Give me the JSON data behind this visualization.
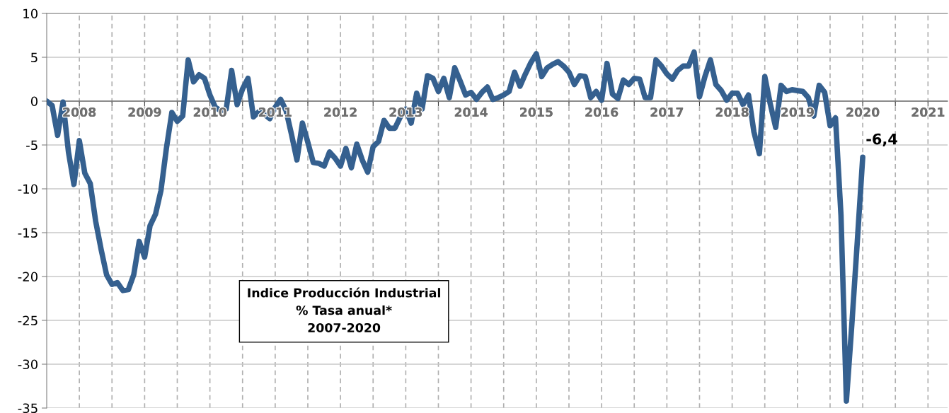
{
  "chart_data": {
    "type": "line",
    "title": "Indice Producción Industrial\n% Tasa anual*\n2007-2020",
    "x": [
      2007.5,
      2007.583,
      2007.667,
      2007.75,
      2007.833,
      2007.917,
      2008,
      2008.083,
      2008.167,
      2008.25,
      2008.333,
      2008.417,
      2008.5,
      2008.583,
      2008.667,
      2008.75,
      2008.833,
      2008.917,
      2009,
      2009.083,
      2009.167,
      2009.25,
      2009.333,
      2009.417,
      2009.5,
      2009.583,
      2009.667,
      2009.75,
      2009.833,
      2009.917,
      2010,
      2010.083,
      2010.167,
      2010.25,
      2010.333,
      2010.417,
      2010.5,
      2010.583,
      2010.667,
      2010.75,
      2010.833,
      2010.917,
      2011,
      2011.083,
      2011.167,
      2011.25,
      2011.333,
      2011.417,
      2011.5,
      2011.583,
      2011.667,
      2011.75,
      2011.833,
      2011.917,
      2012,
      2012.083,
      2012.167,
      2012.25,
      2012.333,
      2012.417,
      2012.5,
      2012.583,
      2012.667,
      2012.75,
      2012.833,
      2012.917,
      2013,
      2013.083,
      2013.167,
      2013.25,
      2013.333,
      2013.417,
      2013.5,
      2013.583,
      2013.667,
      2013.75,
      2013.833,
      2013.917,
      2014,
      2014.083,
      2014.167,
      2014.25,
      2014.333,
      2014.417,
      2014.5,
      2014.583,
      2014.667,
      2014.75,
      2014.833,
      2014.917,
      2015,
      2015.083,
      2015.167,
      2015.25,
      2015.333,
      2015.417,
      2015.5,
      2015.583,
      2015.667,
      2015.75,
      2015.833,
      2015.917,
      2016,
      2016.083,
      2016.167,
      2016.25,
      2016.333,
      2016.417,
      2016.5,
      2016.583,
      2016.667,
      2016.75,
      2016.833,
      2016.917,
      2017,
      2017.083,
      2017.167,
      2017.25,
      2017.333,
      2017.417,
      2017.5,
      2017.583,
      2017.667,
      2017.75,
      2017.833,
      2017.917,
      2018,
      2018.083,
      2018.167,
      2018.25,
      2018.333,
      2018.417,
      2018.5,
      2018.583,
      2018.667,
      2018.75,
      2018.833,
      2018.917,
      2019,
      2019.083,
      2019.167,
      2019.25,
      2019.333,
      2019.417,
      2019.5,
      2019.583,
      2019.667,
      2019.75,
      2019.833,
      2019.917,
      2020
    ],
    "series": [
      {
        "color": "#35608f",
        "values": [
          0,
          -0.5,
          -3.9,
          -0.1,
          -5.8,
          -9.5,
          -4.5,
          -8.2,
          -9.4,
          -13.7,
          -16.9,
          -19.8,
          -20.9,
          -20.7,
          -21.6,
          -21.5,
          -19.8,
          -16.0,
          -17.8,
          -14.2,
          -12.9,
          -10.2,
          -5.4,
          -1.3,
          -2.3,
          -1.7,
          4.7,
          2.2,
          3.0,
          2.6,
          0.7,
          -0.7,
          -1.1,
          -0.9,
          3.5,
          -0.4,
          1.4,
          2.6,
          -1.8,
          -1.2,
          -1.5,
          -2.0,
          -0.7,
          0.2,
          -1.1,
          -3.8,
          -6.7,
          -2.5,
          -4.7,
          -7.0,
          -7.1,
          -7.4,
          -5.8,
          -6.5,
          -7.4,
          -5.4,
          -7.6,
          -4.9,
          -6.7,
          -8.1,
          -5.2,
          -4.6,
          -2.2,
          -3.1,
          -3.1,
          -1.8,
          -0.9,
          -2.5,
          0.9,
          -0.9,
          2.9,
          2.6,
          1.1,
          2.6,
          0.4,
          3.8,
          2.3,
          0.7,
          1.0,
          0.2,
          1.0,
          1.6,
          0.2,
          0.4,
          0.7,
          1.1,
          3.3,
          1.7,
          3.1,
          4.4,
          5.4,
          2.8,
          3.8,
          4.2,
          4.5,
          4.0,
          3.3,
          1.9,
          2.9,
          2.8,
          0.4,
          1.1,
          0.1,
          4.3,
          0.8,
          0.3,
          2.4,
          1.9,
          2.6,
          2.5,
          0.4,
          0.4,
          4.7,
          4.0,
          3.1,
          2.5,
          3.5,
          4.0,
          4.0,
          5.6,
          0.5,
          2.8,
          4.7,
          1.9,
          1.2,
          0.1,
          0.9,
          0.9,
          -0.4,
          0.7,
          -3.5,
          -6.0,
          2.8,
          -0.3,
          -3.0,
          1.8,
          1.1,
          1.3,
          1.2,
          1.1,
          0.4,
          -1.7,
          1.8,
          1.0,
          -2.8,
          -1.9,
          -13,
          -34.2,
          -25.5,
          -16,
          -6.4
        ]
      }
    ],
    "xlim": [
      2007.5,
      2021.3
    ],
    "xticks": [
      2008,
      {
        "value": 2008.5,
        "label": null
      },
      2009,
      {
        "value": 2009.5,
        "label": null
      },
      2010,
      {
        "value": 2010.5,
        "label": null
      },
      2011,
      {
        "value": 2011.5,
        "label": null
      },
      2012,
      {
        "value": 2012.5,
        "label": null
      },
      2013,
      {
        "value": 2013.5,
        "label": null
      },
      2014,
      {
        "value": 2014.5,
        "label": null
      },
      2015,
      {
        "value": 2015.5,
        "label": null
      },
      2016,
      {
        "value": 2016.5,
        "label": null
      },
      2017,
      {
        "value": 2017.5,
        "label": null
      },
      2018,
      {
        "value": 2018.5,
        "label": null
      },
      2019,
      {
        "value": 2019.5,
        "label": null
      },
      2020,
      {
        "value": 2020.5,
        "label": null
      },
      2021
    ],
    "ylim": [
      -35,
      10
    ],
    "yticks": [
      -35,
      -30,
      -25,
      -20,
      -15,
      -10,
      -5,
      0,
      5,
      10
    ],
    "grid": true,
    "line_style": "solid",
    "annotations": [
      {
        "text": "-6,4",
        "x": 2020,
        "y": -6.4
      }
    ]
  }
}
